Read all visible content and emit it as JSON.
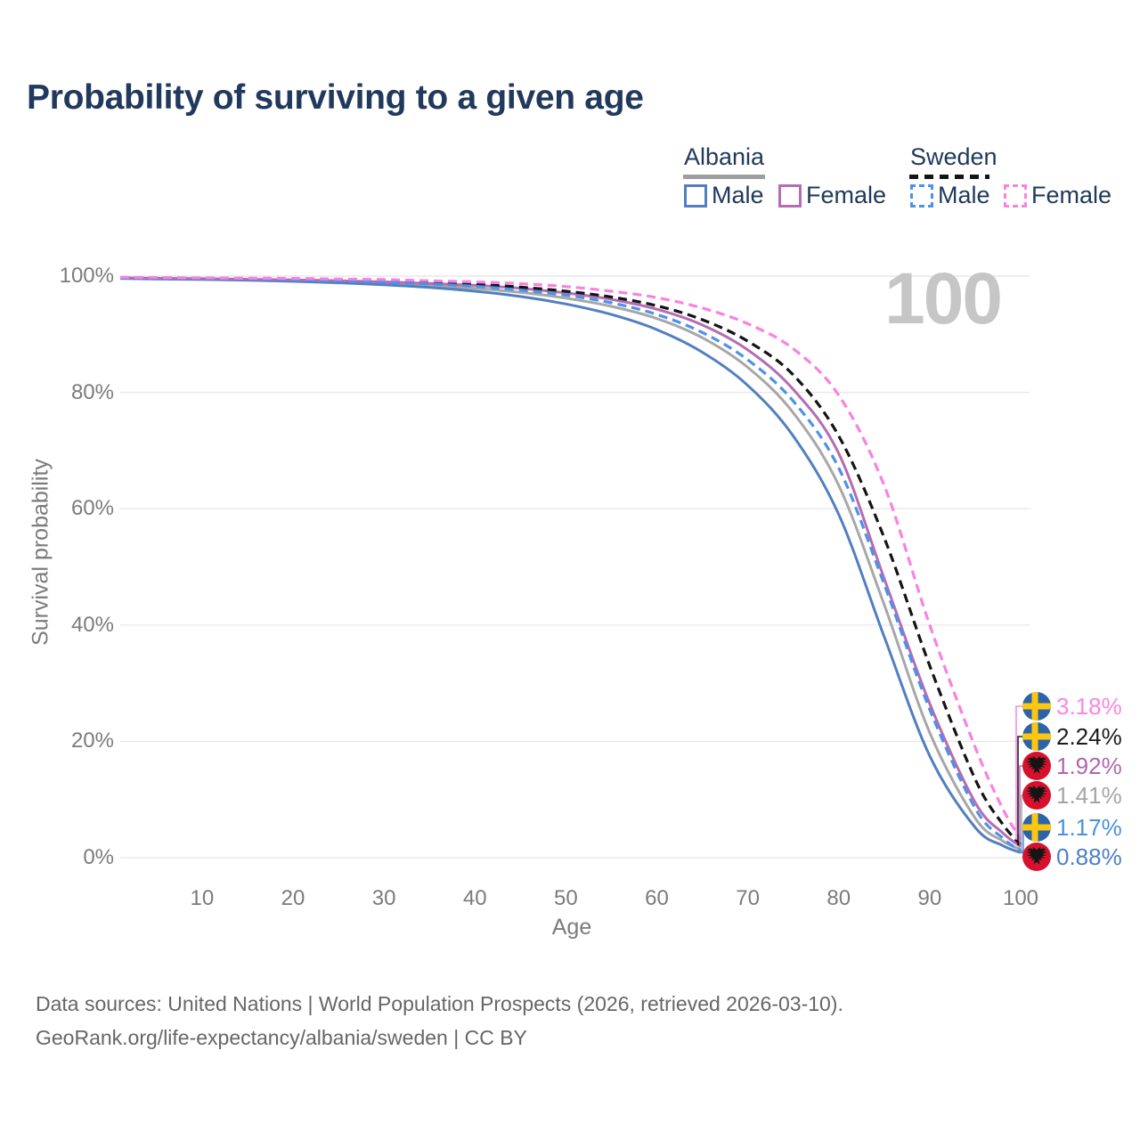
{
  "title": "Probability of surviving to a given age",
  "watermark": "100",
  "legend": {
    "groups": [
      {
        "name": "Albania",
        "line_style": "solid",
        "items": [
          {
            "label": "Male",
            "series_key": "Albania|Male"
          },
          {
            "label": "Female",
            "series_key": "Albania|Female"
          }
        ]
      },
      {
        "name": "Sweden",
        "line_style": "dashed",
        "items": [
          {
            "label": "Male",
            "series_key": "Sweden|Male"
          },
          {
            "label": "Female",
            "series_key": "Sweden|Female"
          }
        ]
      }
    ]
  },
  "axes": {
    "xlabel": "Age",
    "ylabel": "Survival probability"
  },
  "footer": {
    "line1": "Data sources: United Nations | World Population Prospects (2026, retrieved 2026-03-10).",
    "line2": "GeoRank.org/life-expectancy/albania/sweden | CC BY"
  },
  "colors": {
    "title_text": "#20395c",
    "axis_text": "#7b7b7b",
    "gridline": "#e9e9e9",
    "watermark": "#c6c6c6",
    "footer_text": "#666666",
    "sweden_flag_blue": "#2d63a7",
    "sweden_flag_yellow": "#fdc70f",
    "albania_flag_red": "#d7112d",
    "albania_flag_eagle": "#151515"
  },
  "chart_data": {
    "type": "line",
    "title": "Probability of surviving to a given age",
    "xlabel": "Age",
    "ylabel": "Survival probability",
    "xlim": [
      1,
      100
    ],
    "ylim": [
      0,
      100
    ],
    "grid": "horizontal",
    "legend_position": "top-right",
    "x_ticks": [
      10,
      20,
      30,
      40,
      50,
      60,
      70,
      80,
      90,
      100
    ],
    "y_ticks": [
      {
        "value": 0,
        "label": "0%"
      },
      {
        "value": 20,
        "label": "20%"
      },
      {
        "value": 40,
        "label": "40%"
      },
      {
        "value": 60,
        "label": "60%"
      },
      {
        "value": 80,
        "label": "80%"
      },
      {
        "value": 100,
        "label": "100%"
      }
    ],
    "series": [
      {
        "name": "Albania (both sexes)",
        "country": "Albania",
        "sex": "Both",
        "color": "#a7a7a7",
        "label_color": "#a5a5a5",
        "dash": false,
        "flag": "albania",
        "end_label": "1.41%",
        "points": [
          [
            1,
            99.65
          ],
          [
            5,
            99.57
          ],
          [
            10,
            99.5
          ],
          [
            15,
            99.38
          ],
          [
            20,
            99.25
          ],
          [
            25,
            99.05
          ],
          [
            30,
            98.8
          ],
          [
            35,
            98.4
          ],
          [
            40,
            97.9
          ],
          [
            45,
            97.2
          ],
          [
            50,
            96.2
          ],
          [
            55,
            94.8
          ],
          [
            60,
            92.7
          ],
          [
            65,
            89.4
          ],
          [
            70,
            84.3
          ],
          [
            75,
            76.5
          ],
          [
            80,
            64.0
          ],
          [
            85,
            43.5
          ],
          [
            90,
            21.5
          ],
          [
            95,
            6.8
          ],
          [
            98,
            2.9
          ],
          [
            100,
            1.41
          ]
        ]
      },
      {
        "name": "Albania Male",
        "country": "Albania",
        "sex": "Male",
        "color": "#527fc0",
        "label_color": "#4e7fc4",
        "dash": false,
        "flag": "albania",
        "end_label": "0.88%",
        "points": [
          [
            1,
            99.6
          ],
          [
            5,
            99.5
          ],
          [
            10,
            99.42
          ],
          [
            15,
            99.3
          ],
          [
            20,
            99.1
          ],
          [
            25,
            98.85
          ],
          [
            30,
            98.5
          ],
          [
            35,
            98.05
          ],
          [
            40,
            97.4
          ],
          [
            45,
            96.5
          ],
          [
            50,
            95.2
          ],
          [
            55,
            93.4
          ],
          [
            60,
            90.8
          ],
          [
            65,
            86.9
          ],
          [
            70,
            81.2
          ],
          [
            75,
            72.5
          ],
          [
            80,
            59.0
          ],
          [
            85,
            38.0
          ],
          [
            90,
            17.5
          ],
          [
            95,
            5.2
          ],
          [
            98,
            2.1
          ],
          [
            100,
            0.88
          ]
        ]
      },
      {
        "name": "Albania Female",
        "country": "Albania",
        "sex": "Female",
        "color": "#b56cb4",
        "label_color": "#b166ae",
        "dash": false,
        "flag": "albania",
        "end_label": "1.92%",
        "points": [
          [
            1,
            99.7
          ],
          [
            5,
            99.62
          ],
          [
            10,
            99.55
          ],
          [
            15,
            99.45
          ],
          [
            20,
            99.35
          ],
          [
            25,
            99.2
          ],
          [
            30,
            99.0
          ],
          [
            35,
            98.75
          ],
          [
            40,
            98.4
          ],
          [
            45,
            97.9
          ],
          [
            50,
            97.1
          ],
          [
            55,
            96.0
          ],
          [
            60,
            94.3
          ],
          [
            65,
            91.6
          ],
          [
            70,
            87.3
          ],
          [
            75,
            80.5
          ],
          [
            80,
            69.5
          ],
          [
            85,
            48.0
          ],
          [
            90,
            26.5
          ],
          [
            95,
            9.5
          ],
          [
            98,
            4.3
          ],
          [
            100,
            1.92
          ]
        ]
      },
      {
        "name": "Sweden (both sexes)",
        "country": "Sweden",
        "sex": "Both",
        "color": "#141414",
        "label_color": "#1c1c1c",
        "dash": true,
        "flag": "sweden",
        "end_label": "2.24%",
        "points": [
          [
            1,
            99.75
          ],
          [
            5,
            99.7
          ],
          [
            10,
            99.62
          ],
          [
            15,
            99.55
          ],
          [
            20,
            99.45
          ],
          [
            25,
            99.3
          ],
          [
            30,
            99.12
          ],
          [
            35,
            98.9
          ],
          [
            40,
            98.6
          ],
          [
            45,
            98.1
          ],
          [
            50,
            97.4
          ],
          [
            55,
            96.4
          ],
          [
            60,
            94.9
          ],
          [
            65,
            92.5
          ],
          [
            70,
            88.8
          ],
          [
            75,
            83.0
          ],
          [
            80,
            72.5
          ],
          [
            85,
            55.0
          ],
          [
            90,
            33.0
          ],
          [
            95,
            13.5
          ],
          [
            98,
            5.8
          ],
          [
            100,
            2.24
          ]
        ]
      },
      {
        "name": "Sweden Male",
        "country": "Sweden",
        "sex": "Male",
        "color": "#4d92e8",
        "label_color": "#4a90e2",
        "dash": true,
        "flag": "sweden",
        "end_label": "1.17%",
        "points": [
          [
            1,
            99.7
          ],
          [
            5,
            99.65
          ],
          [
            10,
            99.58
          ],
          [
            15,
            99.48
          ],
          [
            20,
            99.35
          ],
          [
            25,
            99.15
          ],
          [
            30,
            98.95
          ],
          [
            35,
            98.65
          ],
          [
            40,
            98.25
          ],
          [
            45,
            97.6
          ],
          [
            50,
            96.7
          ],
          [
            55,
            95.4
          ],
          [
            60,
            93.4
          ],
          [
            65,
            90.3
          ],
          [
            70,
            85.6
          ],
          [
            75,
            78.5
          ],
          [
            80,
            67.0
          ],
          [
            85,
            47.0
          ],
          [
            90,
            25.5
          ],
          [
            95,
            8.5
          ],
          [
            98,
            3.4
          ],
          [
            100,
            1.17
          ]
        ]
      },
      {
        "name": "Sweden Female",
        "country": "Sweden",
        "sex": "Female",
        "color": "#f982e0",
        "label_color": "#fb85e4",
        "dash": true,
        "flag": "sweden",
        "end_label": "3.18%",
        "points": [
          [
            1,
            99.8
          ],
          [
            5,
            99.75
          ],
          [
            10,
            99.7
          ],
          [
            15,
            99.65
          ],
          [
            20,
            99.6
          ],
          [
            25,
            99.5
          ],
          [
            30,
            99.4
          ],
          [
            35,
            99.2
          ],
          [
            40,
            99.0
          ],
          [
            45,
            98.7
          ],
          [
            50,
            98.2
          ],
          [
            55,
            97.4
          ],
          [
            60,
            96.3
          ],
          [
            65,
            94.5
          ],
          [
            70,
            91.8
          ],
          [
            75,
            87.5
          ],
          [
            80,
            79.5
          ],
          [
            85,
            64.0
          ],
          [
            90,
            40.0
          ],
          [
            95,
            19.0
          ],
          [
            98,
            8.5
          ],
          [
            100,
            3.18
          ]
        ]
      }
    ]
  }
}
